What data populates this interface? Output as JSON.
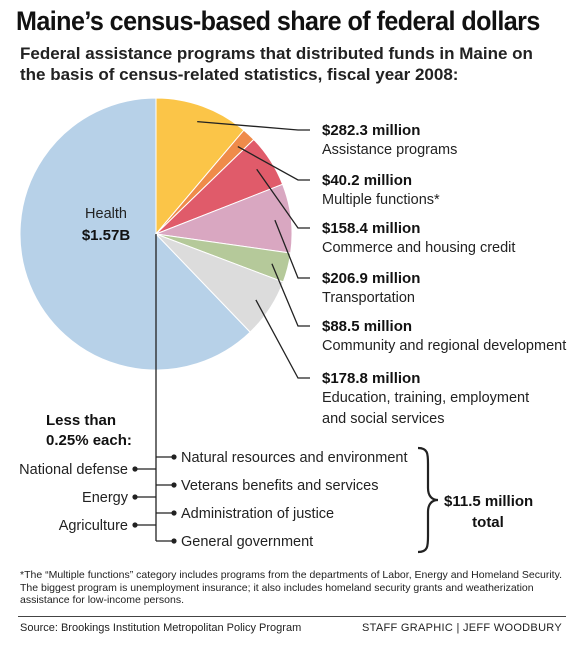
{
  "chart_data": {
    "type": "pie",
    "title": "Maine’s census-based share of federal dollars",
    "subtitle": "Federal assistance programs that distributed funds in Maine on the basis of census-related statistics, fiscal year 2008:",
    "unit": "millions of dollars",
    "slices": [
      {
        "name": "Health",
        "amount": "$1.57B",
        "value": 1570,
        "color": "#b7d1e8"
      },
      {
        "name": "Assistance programs",
        "amount": "$282.3 million",
        "value": 282.3,
        "color": "#fbc548"
      },
      {
        "name": "Multiple functions*",
        "amount": "$40.2 million",
        "value": 40.2,
        "color": "#ef8b4a"
      },
      {
        "name": "Commerce and housing credit",
        "amount": "$158.4 million",
        "value": 158.4,
        "color": "#e05b6a"
      },
      {
        "name": "Transportation",
        "amount": "$206.9 million",
        "value": 206.9,
        "color": "#d9a7c1"
      },
      {
        "name": "Community and regional development",
        "amount": "$88.5 million",
        "value": 88.5,
        "color": "#b5c99a"
      },
      {
        "name": "Education, training, employment and social services",
        "name_lines": [
          "Education, training, employment",
          "and social services"
        ],
        "amount": "$178.8 million",
        "value": 178.8,
        "color": "#dcdcdc"
      }
    ],
    "small_programs": {
      "heading_lines": [
        "Less than",
        "0.25% each:"
      ],
      "left_items": [
        "National defense",
        "Energy",
        "Agriculture"
      ],
      "right_items": [
        "Natural resources and environment",
        "Veterans benefits and services",
        "Administration of justice",
        "General government"
      ],
      "total_lines": [
        "$11.5 million",
        "total"
      ]
    }
  },
  "footnote": "*The “Multiple functions” category includes programs from the departments of Labor, Energy and Homeland Security. The biggest program is unemployment insurance; it also includes homeland security grants and weatherization assistance for low-income persons.",
  "source": "Source: Brookings Institution Metropolitan Policy Program",
  "credit": "STAFF GRAPHIC | JEFF WOODBURY"
}
